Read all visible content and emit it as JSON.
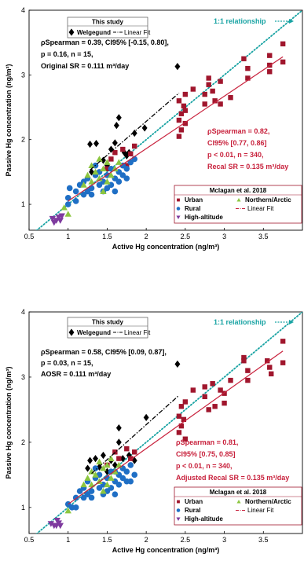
{
  "chart_data": [
    {
      "type": "scatter",
      "panel": "top",
      "xlabel": "Active Hg concentration (ng/m³)",
      "ylabel": "Passive Hg concentration (ng/m³)",
      "xlim": [
        0.5,
        4
      ],
      "ylim": [
        0.6,
        4
      ],
      "xticks": [
        "0.5",
        "1",
        "1.5",
        "2",
        "2.5",
        "3",
        "3.5"
      ],
      "yticks": [
        "1",
        "2",
        "3",
        "4"
      ],
      "grid": false,
      "one_to_one_label": "1:1 relationship",
      "legend_this_study": {
        "title": "This study",
        "entries": [
          "Welgegund",
          "Linear Fit"
        ]
      },
      "legend_mclagan": {
        "title": "Mclagan et al. 2018",
        "entries": [
          "Urban",
          "Northern/Arctic",
          "Rural",
          "Linear Fit",
          "High-altitude"
        ]
      },
      "stats_this_study": [
        "ρSpearman = 0.39, CI95% [-0.15, 0.80],",
        "p = 0.16, n = 15,",
        "Original SR = 0.111 m³/day"
      ],
      "stats_mclagan": [
        "ρSpearman = 0.82,",
        "CI95% [0.77, 0.86]",
        "p < 0.01, n = 340,",
        "Recal SR = 0.135 m³/day"
      ],
      "fit_welgegund": {
        "x": [
          1.28,
          2.42
        ],
        "y": [
          1.53,
          2.72
        ]
      },
      "fit_mclagan": {
        "x": [
          1.0,
          3.75
        ],
        "y": [
          1.05,
          3.28
        ]
      },
      "series": [
        {
          "name": "Welgegund",
          "points": [
            [
              1.28,
              1.93
            ],
            [
              1.36,
              1.94
            ],
            [
              1.45,
              1.68
            ],
            [
              1.6,
              1.95
            ],
            [
              1.62,
              2.22
            ],
            [
              1.65,
              2.34
            ],
            [
              1.72,
              1.8
            ],
            [
              1.78,
              1.8
            ],
            [
              1.85,
              2.1
            ],
            [
              1.98,
              2.18
            ],
            [
              2.4,
              3.13
            ],
            [
              1.3,
              1.5
            ],
            [
              1.5,
              1.6
            ],
            [
              1.75,
              1.75
            ],
            [
              1.55,
              1.85
            ]
          ]
        },
        {
          "name": "Urban",
          "points": [
            [
              1.5,
              1.55
            ],
            [
              1.55,
              1.7
            ],
            [
              1.6,
              1.8
            ],
            [
              1.7,
              1.85
            ],
            [
              1.8,
              1.78
            ],
            [
              1.85,
              1.9
            ],
            [
              1.75,
              1.6
            ],
            [
              2.42,
              2.3
            ],
            [
              2.45,
              2.4
            ],
            [
              2.48,
              2.52
            ],
            [
              2.42,
              2.6
            ],
            [
              2.5,
              2.7
            ],
            [
              2.45,
              2.15
            ],
            [
              2.5,
              2.25
            ],
            [
              2.42,
              2.05
            ],
            [
              2.6,
              2.78
            ],
            [
              2.75,
              2.7
            ],
            [
              2.8,
              2.85
            ],
            [
              2.8,
              2.95
            ],
            [
              2.88,
              2.6
            ],
            [
              2.95,
              2.9
            ],
            [
              2.95,
              2.55
            ],
            [
              3.08,
              2.65
            ],
            [
              3.25,
              3.25
            ],
            [
              3.3,
              3.1
            ],
            [
              3.3,
              2.95
            ],
            [
              3.58,
              3.05
            ],
            [
              3.58,
              3.15
            ],
            [
              3.58,
              3.3
            ],
            [
              3.75,
              3.48
            ],
            [
              3.75,
              3.2
            ],
            [
              2.75,
              2.55
            ],
            [
              2.85,
              2.75
            ],
            [
              2.5,
              2.45
            ]
          ]
        },
        {
          "name": "Rural",
          "points": [
            [
              1.0,
              1.1
            ],
            [
              1.02,
              1.25
            ],
            [
              1.1,
              1.2
            ],
            [
              1.15,
              1.3
            ],
            [
              1.2,
              1.35
            ],
            [
              1.25,
              1.4
            ],
            [
              1.3,
              1.25
            ],
            [
              1.35,
              1.45
            ],
            [
              1.4,
              1.5
            ],
            [
              1.45,
              1.35
            ],
            [
              1.5,
              1.45
            ],
            [
              1.55,
              1.55
            ],
            [
              1.6,
              1.4
            ],
            [
              1.65,
              1.5
            ],
            [
              1.7,
              1.6
            ],
            [
              1.75,
              1.55
            ],
            [
              1.8,
              1.65
            ],
            [
              1.85,
              1.7
            ],
            [
              1.6,
              1.2
            ],
            [
              1.3,
              1.15
            ],
            [
              1.45,
              1.2
            ],
            [
              1.2,
              1.15
            ],
            [
              1.0,
              1.0
            ],
            [
              1.4,
              1.3
            ],
            [
              1.5,
              1.25
            ],
            [
              1.7,
              1.45
            ],
            [
              1.55,
              1.3
            ],
            [
              1.35,
              1.6
            ],
            [
              1.65,
              1.35
            ],
            [
              1.1,
              1.05
            ],
            [
              1.75,
              1.4
            ],
            [
              1.25,
              1.2
            ]
          ]
        },
        {
          "name": "Northern/Arctic",
          "points": [
            [
              0.95,
              0.95
            ],
            [
              1.0,
              0.85
            ],
            [
              1.2,
              1.3
            ],
            [
              1.25,
              1.45
            ],
            [
              1.3,
              1.6
            ],
            [
              1.35,
              1.5
            ],
            [
              1.4,
              1.4
            ],
            [
              1.45,
              1.55
            ],
            [
              1.5,
              1.65
            ],
            [
              1.55,
              1.45
            ],
            [
              1.6,
              1.55
            ],
            [
              1.65,
              1.65
            ],
            [
              1.3,
              1.35
            ],
            [
              1.4,
              1.7
            ],
            [
              1.5,
              1.35
            ],
            [
              1.45,
              1.2
            ]
          ]
        },
        {
          "name": "High-altitude",
          "points": [
            [
              0.8,
              0.78
            ],
            [
              0.82,
              0.72
            ],
            [
              0.85,
              0.75
            ],
            [
              0.88,
              0.8
            ],
            [
              0.9,
              0.75
            ],
            [
              0.92,
              0.82
            ]
          ]
        }
      ]
    },
    {
      "type": "scatter",
      "panel": "bottom",
      "xlabel": "Active Hg concentration (ng/m³)",
      "ylabel": "Passive Hg concentration (ng/m³)",
      "xlim": [
        0.5,
        4
      ],
      "ylim": [
        0.6,
        4
      ],
      "xticks": [
        "0.5",
        "1",
        "1.5",
        "2",
        "2.5",
        "3",
        "3.5"
      ],
      "yticks": [
        "1",
        "2",
        "3",
        "4"
      ],
      "grid": false,
      "one_to_one_label": "1:1 relationship",
      "legend_this_study": {
        "title": "This study",
        "entries": [
          "Welgegund",
          "Linear Fit"
        ]
      },
      "legend_mclagan": {
        "title": "Mclagan et al. 2018",
        "entries": [
          "Urban",
          "Northern/Arctic",
          "Rural",
          "Linear Fit",
          "High-altitude"
        ]
      },
      "stats_this_study": [
        "ρSpearman = 0.58, CI95% [0.09, 0.87],",
        "p = 0.03, n = 15,",
        "AOSR = 0.111 m³/day"
      ],
      "stats_mclagan": [
        "ρSpearman = 0.81,",
        "CI95% [0.75, 0.85]",
        "p < 0.01, n = 340,",
        "Adjusted Recal SR = 0.135 m³/day"
      ],
      "fit_welgegund": {
        "x": [
          1.3,
          2.42
        ],
        "y": [
          1.52,
          2.72
        ]
      },
      "fit_mclagan": {
        "x": [
          1.0,
          3.75
        ],
        "y": [
          1.05,
          3.4
        ]
      },
      "series": [
        {
          "name": "Welgegund",
          "points": [
            [
              1.28,
              1.72
            ],
            [
              1.35,
              1.75
            ],
            [
              1.4,
              1.62
            ],
            [
              1.45,
              1.8
            ],
            [
              1.55,
              1.72
            ],
            [
              1.6,
              1.65
            ],
            [
              1.65,
              2.22
            ],
            [
              1.65,
              2.0
            ],
            [
              1.7,
              1.75
            ],
            [
              1.78,
              1.8
            ],
            [
              1.85,
              1.72
            ],
            [
              2.0,
              2.38
            ],
            [
              2.4,
              3.2
            ],
            [
              1.5,
              1.55
            ],
            [
              1.25,
              1.6
            ]
          ]
        },
        {
          "name": "Urban",
          "points": [
            [
              1.5,
              1.65
            ],
            [
              1.6,
              1.85
            ],
            [
              1.65,
              1.75
            ],
            [
              1.75,
              1.9
            ],
            [
              1.8,
              1.75
            ],
            [
              1.85,
              1.85
            ],
            [
              2.42,
              2.4
            ],
            [
              2.45,
              2.55
            ],
            [
              2.45,
              2.25
            ],
            [
              2.5,
              2.05
            ],
            [
              2.42,
              2.15
            ],
            [
              2.48,
              2.35
            ],
            [
              2.6,
              2.8
            ],
            [
              2.75,
              2.7
            ],
            [
              2.8,
              2.5
            ],
            [
              2.88,
              2.55
            ],
            [
              2.95,
              2.8
            ],
            [
              3.0,
              2.6
            ],
            [
              3.0,
              2.75
            ],
            [
              3.08,
              2.95
            ],
            [
              3.25,
              3.3
            ],
            [
              3.25,
              3.25
            ],
            [
              3.3,
              2.95
            ],
            [
              3.55,
              3.25
            ],
            [
              3.58,
              3.15
            ],
            [
              3.6,
              3.05
            ],
            [
              3.75,
              3.55
            ],
            [
              3.75,
              3.22
            ],
            [
              2.75,
              2.85
            ],
            [
              2.85,
              2.9
            ],
            [
              2.5,
              2.62
            ],
            [
              3.3,
              3.1
            ]
          ]
        },
        {
          "name": "Rural",
          "points": [
            [
              1.0,
              1.05
            ],
            [
              1.05,
              1.0
            ],
            [
              1.1,
              1.15
            ],
            [
              1.15,
              1.25
            ],
            [
              1.2,
              1.3
            ],
            [
              1.25,
              1.4
            ],
            [
              1.3,
              1.25
            ],
            [
              1.35,
              1.45
            ],
            [
              1.4,
              1.5
            ],
            [
              1.45,
              1.35
            ],
            [
              1.5,
              1.45
            ],
            [
              1.55,
              1.55
            ],
            [
              1.6,
              1.4
            ],
            [
              1.65,
              1.5
            ],
            [
              1.7,
              1.6
            ],
            [
              1.75,
              1.55
            ],
            [
              1.8,
              1.65
            ],
            [
              1.85,
              1.5
            ],
            [
              1.6,
              1.2
            ],
            [
              1.3,
              1.15
            ],
            [
              1.45,
              1.2
            ],
            [
              1.2,
              1.15
            ],
            [
              1.4,
              1.3
            ],
            [
              1.5,
              1.25
            ],
            [
              1.7,
              1.45
            ],
            [
              1.55,
              1.3
            ],
            [
              1.35,
              1.6
            ],
            [
              1.65,
              1.35
            ],
            [
              1.1,
              1.0
            ],
            [
              1.75,
              1.4
            ],
            [
              1.25,
              1.2
            ],
            [
              1.6,
              1.55
            ],
            [
              1.8,
              1.4
            ]
          ]
        },
        {
          "name": "Northern/Arctic",
          "points": [
            [
              1.0,
              0.95
            ],
            [
              1.2,
              1.35
            ],
            [
              1.25,
              1.45
            ],
            [
              1.3,
              1.55
            ],
            [
              1.35,
              1.5
            ],
            [
              1.4,
              1.4
            ],
            [
              1.45,
              1.6
            ],
            [
              1.5,
              1.65
            ],
            [
              1.55,
              1.45
            ],
            [
              1.6,
              1.55
            ],
            [
              1.65,
              1.65
            ],
            [
              1.3,
              1.35
            ],
            [
              1.4,
              1.7
            ],
            [
              1.5,
              1.35
            ],
            [
              1.45,
              1.25
            ],
            [
              1.55,
              1.75
            ]
          ]
        },
        {
          "name": "High-altitude",
          "points": [
            [
              0.78,
              0.75
            ],
            [
              0.82,
              0.72
            ],
            [
              0.85,
              0.72
            ],
            [
              0.88,
              0.76
            ],
            [
              0.9,
              0.72
            ],
            [
              0.86,
              0.8
            ]
          ]
        }
      ]
    }
  ],
  "colors": {
    "welgegund": "#000000",
    "urban": "#a0162d",
    "rural": "#1f6fc5",
    "northern_arctic": "#8cc63f",
    "high_altitude": "#7e3a9e",
    "mclagan_fit": "#c8213c",
    "one_to_one": "#18a3a3"
  }
}
